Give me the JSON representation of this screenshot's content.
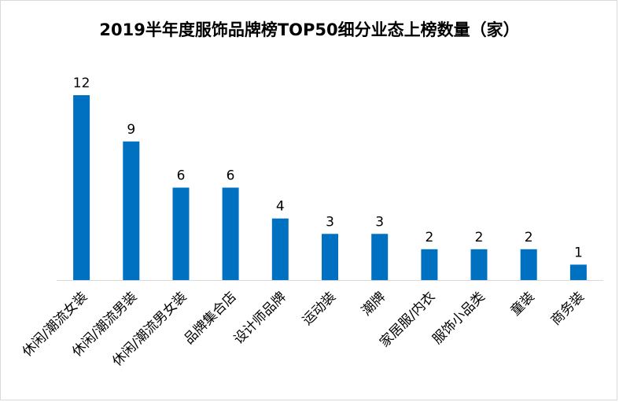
{
  "chart_data": {
    "type": "bar",
    "title": "2019半年度服饰品牌榜TOP50细分业态上榜数量（家）",
    "categories": [
      "休闲/潮流女装",
      "休闲/潮流男装",
      "休闲/潮流男女装",
      "品牌集合店",
      "设计师品牌",
      "运动装",
      "潮牌",
      "家居服/内衣",
      "服饰小品类",
      "童装",
      "商务装"
    ],
    "values": [
      12,
      9,
      6,
      6,
      4,
      3,
      3,
      2,
      2,
      2,
      1
    ],
    "xlabel": "",
    "ylabel": "",
    "ylim": [
      0,
      12
    ],
    "grid": false,
    "legend": "none",
    "bar_color": "#0070C0",
    "axis_color": "#d9d9d9"
  }
}
